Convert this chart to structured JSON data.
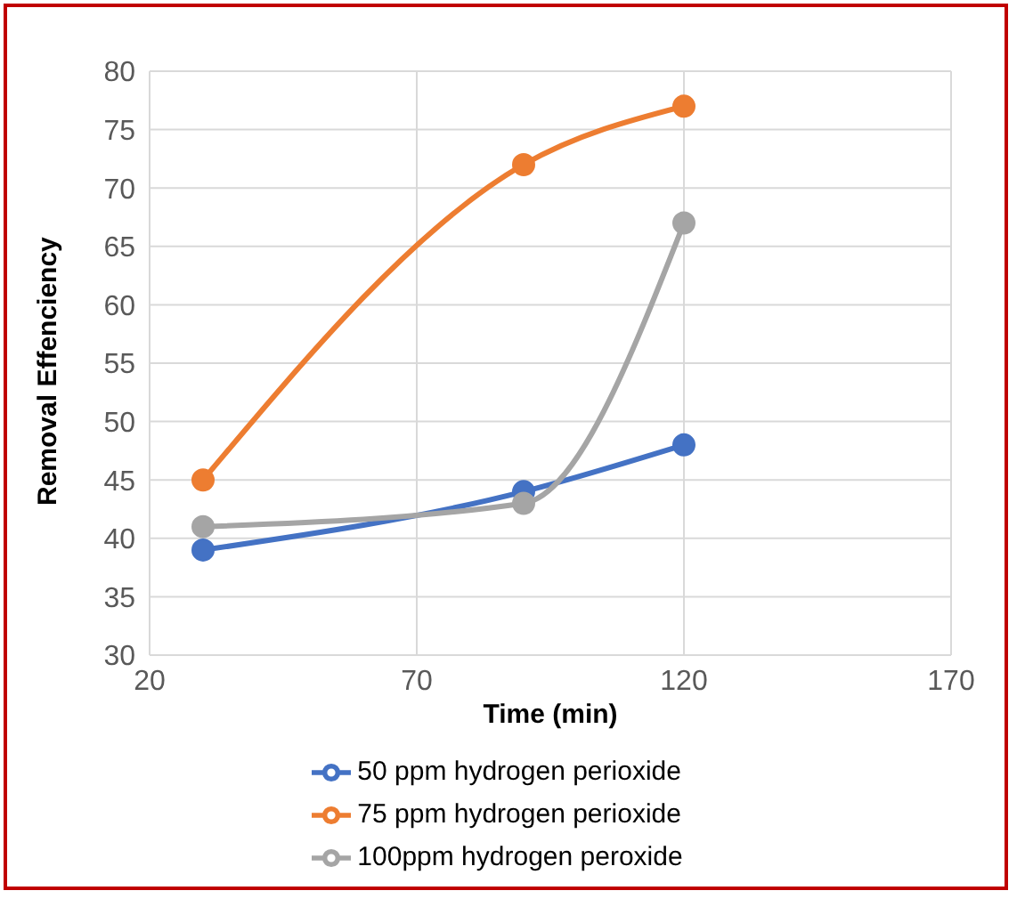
{
  "chart_data": {
    "type": "line",
    "xlabel": "Time (min)",
    "ylabel": "Removal Effenciency",
    "x": [
      30,
      90,
      120
    ],
    "series": [
      {
        "name": "50 ppm hydrogen perioxide",
        "color": "#4472c4",
        "values": [
          39,
          44,
          48
        ]
      },
      {
        "name": "75 ppm hydrogen perioxide",
        "color": "#ed7d31",
        "values": [
          45,
          72,
          77
        ]
      },
      {
        "name": "100ppm hydrogen peroxide",
        "color": "#a5a5a5",
        "values": [
          41,
          43,
          67
        ]
      }
    ],
    "xlim": [
      20,
      170
    ],
    "xticks": [
      20,
      70,
      120,
      170
    ],
    "ylim": [
      30,
      80
    ],
    "yticks": [
      30,
      35,
      40,
      45,
      50,
      55,
      60,
      65,
      70,
      75,
      80
    ],
    "grid": true,
    "legend": "bottom",
    "marker": "circle",
    "line_style": "solid"
  }
}
